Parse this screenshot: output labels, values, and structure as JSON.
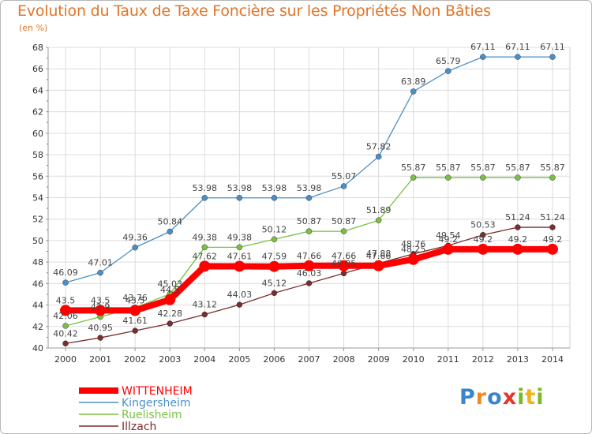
{
  "chart_data": {
    "type": "line",
    "title": "Evolution du Taux de Taxe Foncière sur les Propriétés Non Bâties",
    "unit": "(en %)",
    "x": [
      "2000",
      "2001",
      "2002",
      "2003",
      "2004",
      "2005",
      "2006",
      "2007",
      "2008",
      "2009",
      "2010",
      "2011",
      "2012",
      "2013",
      "2014"
    ],
    "ylim": [
      40,
      68
    ],
    "yticks": [
      40,
      42,
      44,
      46,
      48,
      50,
      52,
      54,
      56,
      58,
      60,
      62,
      64,
      66,
      68
    ],
    "grid": true,
    "legend_position": "bottom-left",
    "series": [
      {
        "name": "WITTENHEIM",
        "color": "#ff0000",
        "emphasis": true,
        "values": [
          43.5,
          43.5,
          43.5,
          44.5,
          47.62,
          47.61,
          47.59,
          47.66,
          47.66,
          47.66,
          48.25,
          49.2,
          49.2,
          49.2,
          49.2
        ],
        "labels": [
          "43.5",
          "43.5",
          "43.5",
          "44.5",
          "47.62",
          "47.61",
          "47.59",
          "47.66",
          "47.66",
          "47.66",
          "48.25",
          "49.2",
          "49.2",
          "49.2",
          "49.2"
        ]
      },
      {
        "name": "Kingersheim",
        "color": "#4a90c8",
        "values": [
          46.09,
          47.01,
          49.36,
          50.84,
          53.98,
          53.98,
          53.98,
          53.98,
          55.07,
          57.82,
          63.89,
          65.79,
          67.11,
          67.11,
          67.11
        ],
        "labels": [
          "46.09",
          "47.01",
          "49.36",
          "50.84",
          "53.98",
          "53.98",
          "53.98",
          "53.98",
          "55.07",
          "57.82",
          "63.89",
          "65.79",
          "67.11",
          "67.11",
          "67.11"
        ]
      },
      {
        "name": "Ruelisheim",
        "color": "#7ac143",
        "values": [
          42.06,
          42.9,
          43.76,
          45.03,
          49.38,
          49.38,
          50.12,
          50.87,
          50.87,
          51.89,
          55.87,
          55.87,
          55.87,
          55.87,
          55.87
        ],
        "labels": [
          "42.06",
          "42.9",
          "43.76",
          "45.03",
          "49.38",
          "49.38",
          "50.12",
          "50.87",
          "50.87",
          "51.89",
          "55.87",
          "55.87",
          "55.87",
          "55.87",
          "55.87"
        ]
      },
      {
        "name": "Illzach",
        "color": "#7b2c2c",
        "values": [
          40.42,
          40.95,
          41.61,
          42.28,
          43.12,
          44.03,
          45.12,
          46.03,
          46.95,
          47.88,
          48.76,
          49.54,
          50.53,
          51.24,
          51.24
        ],
        "labels": [
          "40.42",
          "40.95",
          "41.61",
          "42.28",
          "43.12",
          "44.03",
          "45.12",
          "46.03",
          "46.95",
          "47.88",
          "48.76",
          "49.54",
          "50.53",
          "51.24",
          "51.24"
        ]
      }
    ]
  },
  "logo": {
    "letters": [
      "P",
      "r",
      "o",
      "x",
      "i",
      "t",
      "i"
    ],
    "colors": [
      "#3a86c8",
      "#f08a1c",
      "#3a86c8",
      "#e8332a",
      "#7ab828",
      "#f0b21c",
      "#7ab828"
    ]
  }
}
